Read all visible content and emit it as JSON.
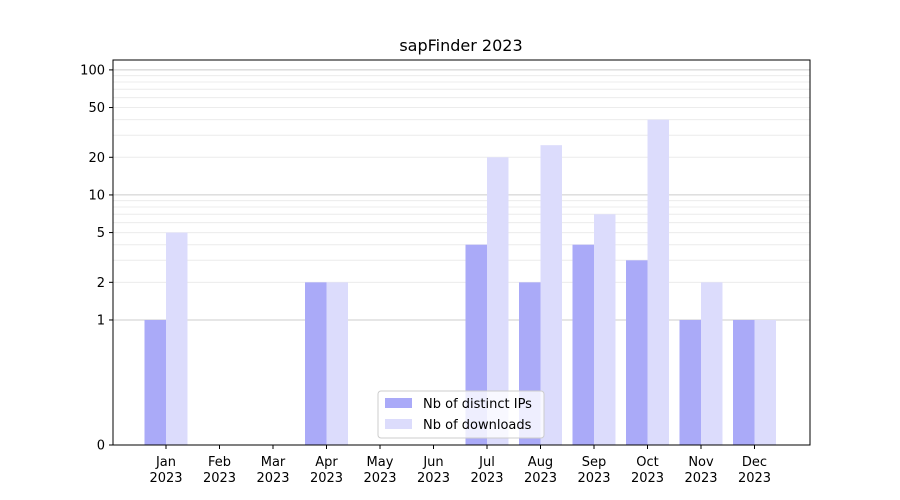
{
  "chart_data": {
    "type": "bar",
    "title": "sapFinder 2023",
    "xlabel": "",
    "ylabel": "",
    "y_scale": "symlog",
    "ylim": [
      0,
      120
    ],
    "y_ticks": [
      0,
      1,
      2,
      5,
      10,
      20,
      50,
      100
    ],
    "y_tick_labels": [
      "0",
      "1",
      "2",
      "5",
      "10",
      "20",
      "50",
      "100"
    ],
    "grid": true,
    "legend_position": "lower-center",
    "categories": [
      [
        "Jan",
        "2023"
      ],
      [
        "Feb",
        "2023"
      ],
      [
        "Mar",
        "2023"
      ],
      [
        "Apr",
        "2023"
      ],
      [
        "May",
        "2023"
      ],
      [
        "Jun",
        "2023"
      ],
      [
        "Jul",
        "2023"
      ],
      [
        "Aug",
        "2023"
      ],
      [
        "Sep",
        "2023"
      ],
      [
        "Oct",
        "2023"
      ],
      [
        "Nov",
        "2023"
      ],
      [
        "Dec",
        "2023"
      ]
    ],
    "series": [
      {
        "name": "Nb of distinct IPs",
        "color": "#aaaaf8",
        "values": [
          1,
          0,
          0,
          2,
          0,
          0,
          4,
          2,
          4,
          3,
          1,
          1
        ]
      },
      {
        "name": "Nb of downloads",
        "color": "#dcdcfc",
        "values": [
          5,
          0,
          0,
          2,
          0,
          0,
          20,
          25,
          7,
          40,
          2,
          1
        ]
      }
    ]
  }
}
